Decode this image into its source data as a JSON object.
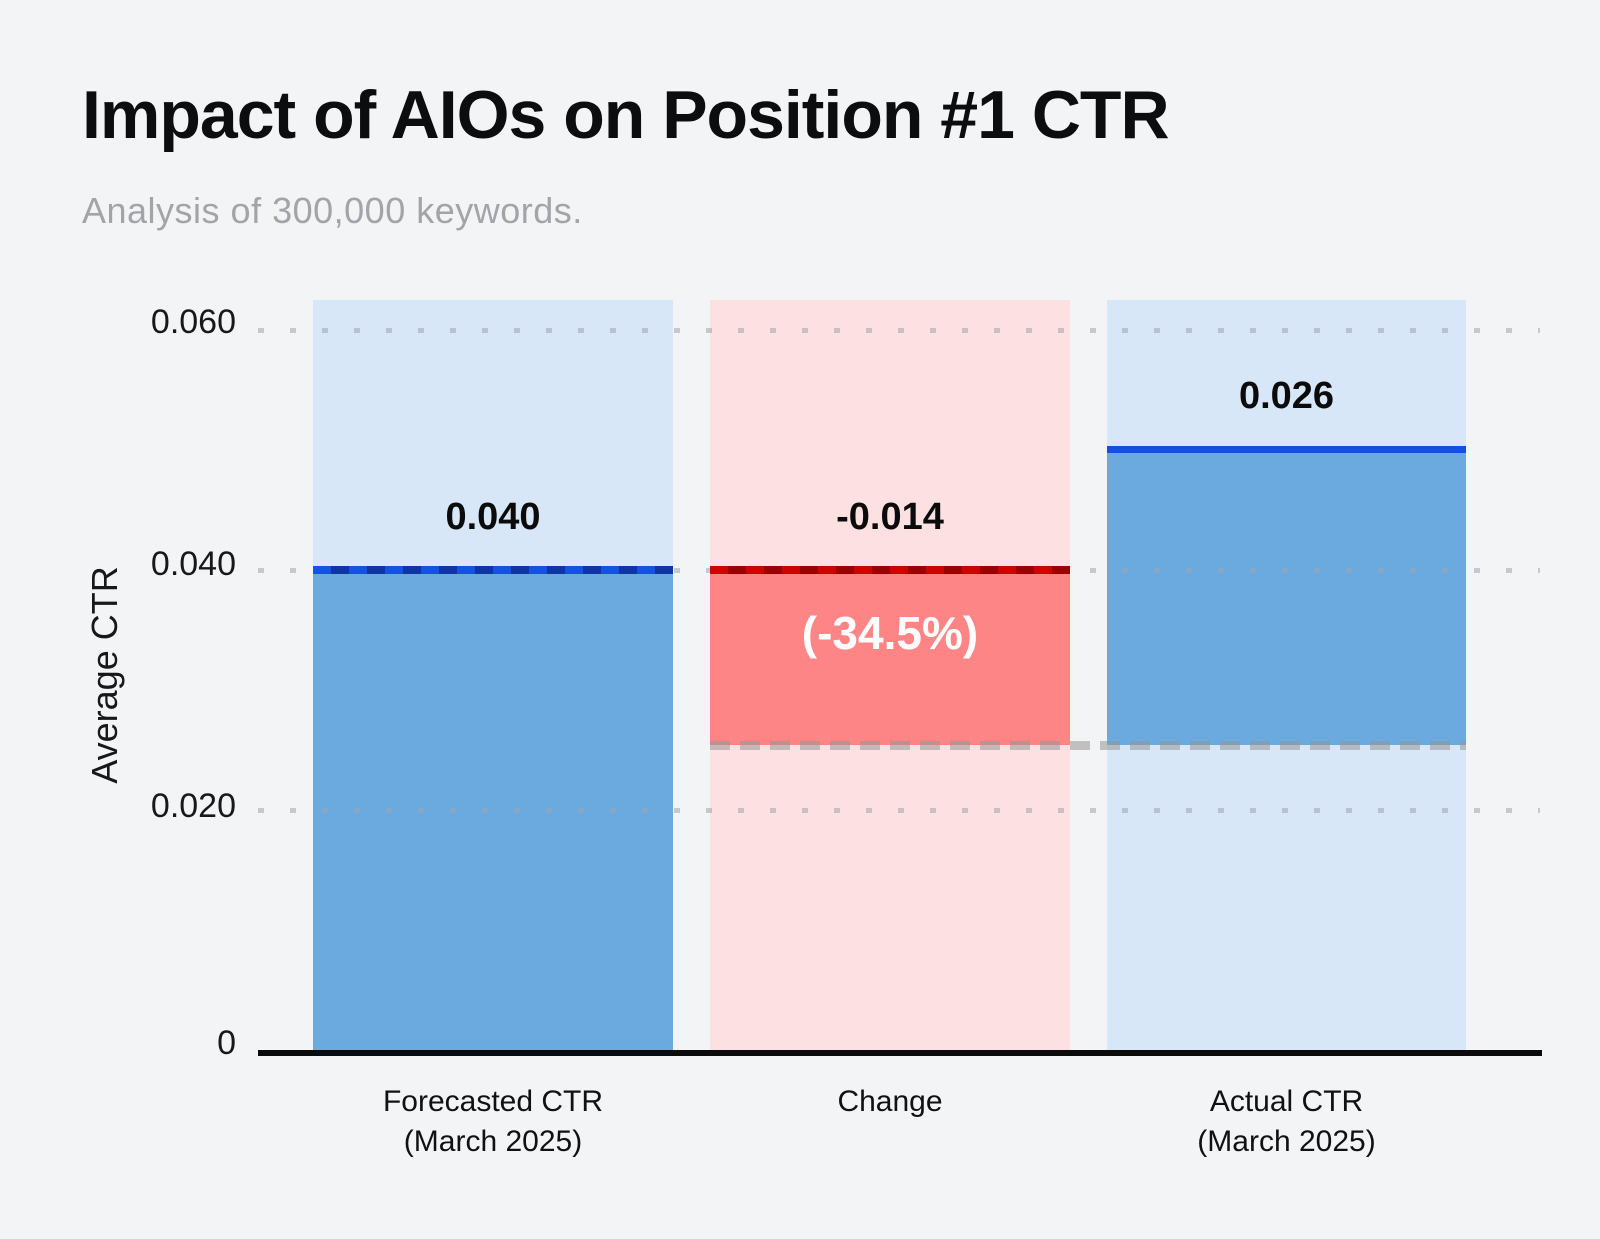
{
  "title": "Impact of AIOs on Position #1 CTR",
  "subtitle": "Analysis of 300,000 keywords.",
  "chart_data": {
    "type": "bar",
    "title": "Impact of AIOs on Position #1 CTR",
    "subtitle": "Analysis of 300,000 keywords.",
    "ylabel": "Average CTR",
    "ylim": [
      0,
      0.0625
    ],
    "grid": "horizontal dotted",
    "legend": "none",
    "yticks": [
      "0.060",
      "0.040",
      "0.020",
      "0"
    ],
    "grid_values": [
      0.06,
      0.04,
      0.02
    ],
    "reference_line_value": 0.0254,
    "categories": [
      "Forecasted CTR (March 2025)",
      "Change",
      "Actual CTR (March 2025)"
    ],
    "bars": [
      {
        "category_line1": "Forecasted CTR",
        "category_line2": "(March 2025)",
        "value": 0.04,
        "value_label": "0.040",
        "role": "forecast-total",
        "draw_span": [
          0,
          0.04
        ],
        "line_value": 0.04,
        "fill_color": "#6aaade",
        "column_color": "#d8e7f7",
        "line_color": "#1652e0 / #0e35a2 dashed"
      },
      {
        "category_line1": "Change",
        "category_line2": "",
        "value": -0.014,
        "value_label": "-0.014",
        "percent_label": "(-34.5%)",
        "role": "decrease",
        "draw_span": [
          0.0254,
          0.04
        ],
        "line_value": 0.04,
        "fill_color": "#fd8585",
        "column_color": "#fde0e2",
        "line_color": "#cb0303 / #9b0101 dashed"
      },
      {
        "category_line1": "Actual CTR",
        "category_line2": "(March 2025)",
        "value": 0.026,
        "value_label": "0.026",
        "role": "actual-total",
        "draw_span": [
          0.0254,
          0.05
        ],
        "line_value": 0.05,
        "fill_color": "#6aaade",
        "column_color": "#d8e7f7",
        "line_color": "#1450dd solid"
      }
    ]
  },
  "colors": {
    "page_background": "#f2f4f6",
    "blue_fill": "#6aaade",
    "light_blue_column": "#d8e7f7",
    "red_fill": "#fd8585",
    "pink_column": "#fde0e2",
    "blue_line_bright": "#1652e0",
    "blue_line_dark": "#0e35a2",
    "red_line_bright": "#cb0303",
    "red_line_dark": "#9b0101",
    "axis_line": "#0b0b0b",
    "subtitle_gray": "#a2a4a8",
    "percent_text": "#ffffff"
  }
}
